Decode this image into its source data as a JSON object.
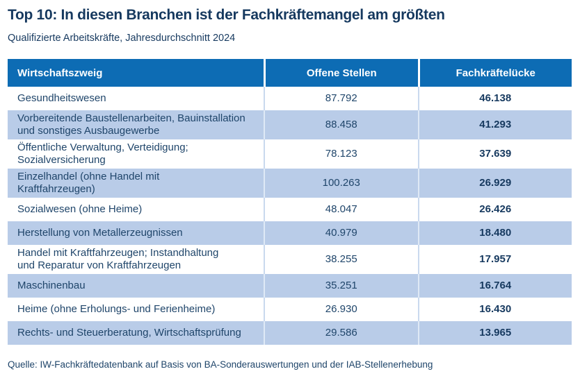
{
  "colors": {
    "header_bg": "#0d6cb4",
    "row_alt_bg": "#b9cce8",
    "title_text": "#16395f",
    "body_text": "#1f456a"
  },
  "chart_data": {
    "type": "table",
    "title": "Top 10: In diesen Branchen ist der Fachkräftemangel am größten",
    "subtitle": "Qualifizierte Arbeitskräfte, Jahresdurchschnitt 2024",
    "columns": [
      "Wirtschaftszweig",
      "Offene Stellen",
      "Fachkräftelücke"
    ],
    "rows": [
      {
        "wirtschaftszweig": "Gesundheitswesen",
        "offene_stellen": "87.792",
        "fachkraefteluecke": "46.138"
      },
      {
        "wirtschaftszweig": "Vorbereitende Baustellenarbeiten, Bauinstallation\nund sonstiges Ausbaugewerbe",
        "offene_stellen": "88.458",
        "fachkraefteluecke": "41.293"
      },
      {
        "wirtschaftszweig": "Öffentliche Verwaltung, Verteidigung;\nSozialversicherung",
        "offene_stellen": "78.123",
        "fachkraefteluecke": "37.639"
      },
      {
        "wirtschaftszweig": "Einzelhandel (ohne Handel mit\nKraftfahrzeugen)",
        "offene_stellen": "100.263",
        "fachkraefteluecke": "26.929"
      },
      {
        "wirtschaftszweig": "Sozialwesen (ohne Heime)",
        "offene_stellen": "48.047",
        "fachkraefteluecke": "26.426"
      },
      {
        "wirtschaftszweig": "Herstellung von Metallerzeugnissen",
        "offene_stellen": "40.979",
        "fachkraefteluecke": "18.480"
      },
      {
        "wirtschaftszweig": "Handel mit Kraftfahrzeugen; Instandhaltung\nund Reparatur von Kraftfahrzeugen",
        "offene_stellen": "38.255",
        "fachkraefteluecke": "17.957"
      },
      {
        "wirtschaftszweig": "Maschinenbau",
        "offene_stellen": "35.251",
        "fachkraefteluecke": "16.764"
      },
      {
        "wirtschaftszweig": "Heime (ohne Erholungs- und Ferienheime)",
        "offene_stellen": "26.930",
        "fachkraefteluecke": "16.430"
      },
      {
        "wirtschaftszweig": "Rechts- und Steuerberatung, Wirtschaftsprüfung",
        "offene_stellen": "29.586",
        "fachkraefteluecke": "13.965"
      }
    ],
    "source": "Quelle: IW-Fachkräftedatenbank auf Basis von BA-Sonderauswertungen und der IAB-Stellenerhebung",
    "legend_position": "none",
    "grid": false
  }
}
